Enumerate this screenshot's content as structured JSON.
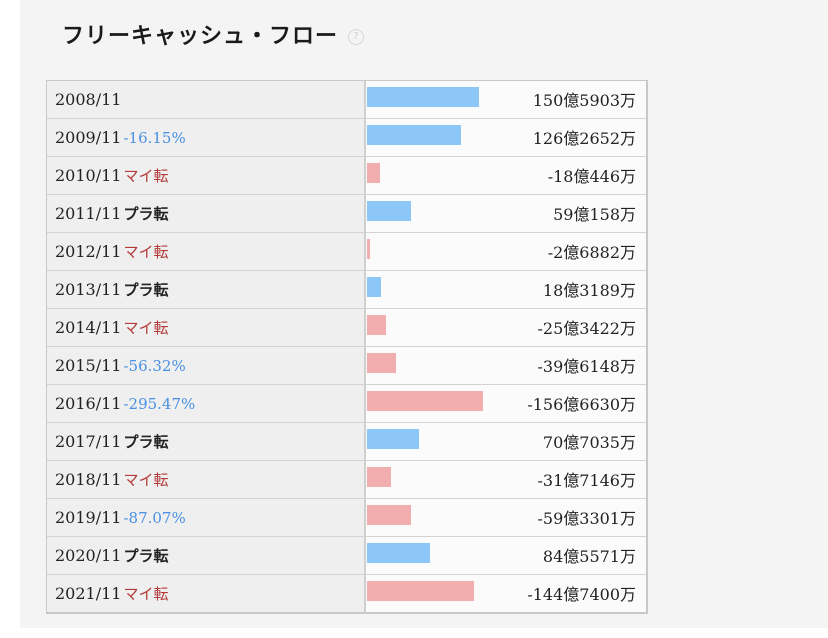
{
  "header": {
    "title": "フリーキャッシュ・フロー",
    "help_icon": "question-circle-icon"
  },
  "colors": {
    "positive_bar": "#8cc7f7",
    "negative_bar": "#f2aeae",
    "pct_text": "#4a90e2",
    "turn_negative_text": "#b43a3a"
  },
  "chart_data": {
    "type": "bar",
    "orientation": "horizontal",
    "unit": "円",
    "categories": [
      "2008/11",
      "2009/11",
      "2010/11",
      "2011/11",
      "2012/11",
      "2013/11",
      "2014/11",
      "2015/11",
      "2016/11",
      "2017/11",
      "2018/11",
      "2019/11",
      "2020/11",
      "2021/11"
    ],
    "values": [
      15059030000,
      12626520000,
      -1804460000,
      5901580000,
      -268820000,
      1831890000,
      -2534220000,
      -3961480000,
      -15666300000,
      7070350000,
      -3171460000,
      -5933010000,
      8455710000,
      -14474000000
    ],
    "change_labels": [
      "",
      "-16.15%",
      "マイ転",
      "プラ転",
      "マイ転",
      "プラ転",
      "マイ転",
      "-56.32%",
      "-295.47%",
      "プラ転",
      "マイ転",
      "-87.07%",
      "プラ転",
      "マイ転"
    ],
    "change_kinds": [
      "",
      "pct",
      "neg",
      "pos",
      "neg",
      "pos",
      "neg",
      "pct",
      "pct",
      "pos",
      "neg",
      "pct",
      "pos",
      "neg"
    ],
    "value_labels": [
      "150億5903万",
      "126億2652万",
      "-18億446万",
      "59億158万",
      "-2億6882万",
      "18億3189万",
      "-25億3422万",
      "-39億6148万",
      "-156億6630万",
      "70億7035万",
      "-31億7146万",
      "-59億3301万",
      "84億5571万",
      "-144億7400万"
    ]
  }
}
